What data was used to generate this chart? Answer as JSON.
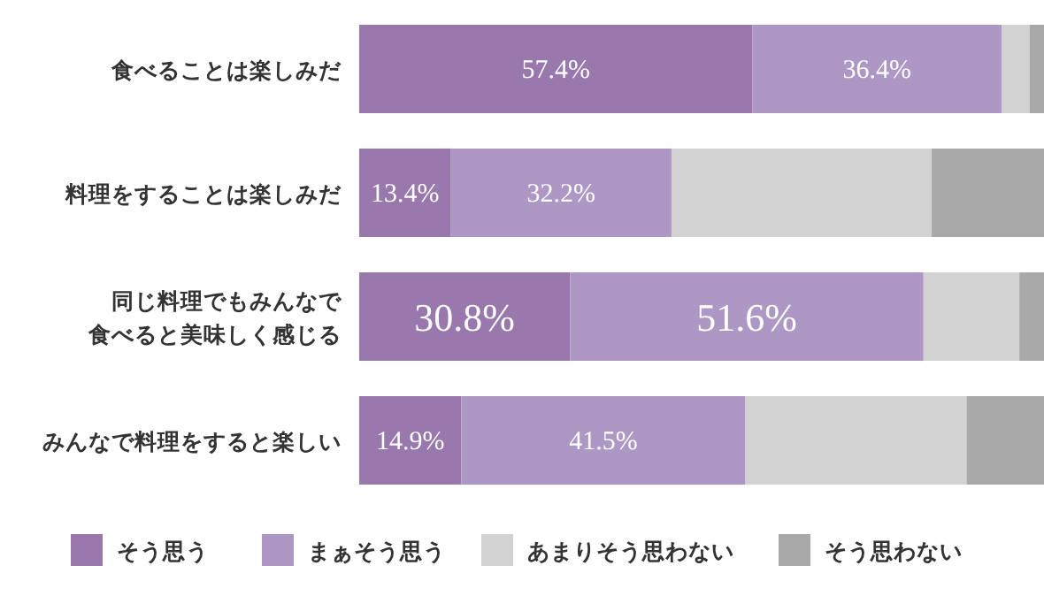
{
  "chart_data": {
    "type": "bar",
    "orientation": "horizontal",
    "stacked": true,
    "legend": "bottom",
    "categories": [
      "食べることは楽しみだ",
      "料理をすることは楽しみだ",
      "同じ料理でもみんなで食べると美味しく感じる",
      "みんなで料理をすると楽しい"
    ],
    "series": [
      {
        "name": "そう思う",
        "color": "#9878ad",
        "values": [
          57.4,
          13.4,
          30.8,
          14.9
        ],
        "value_labels": [
          "57.4%",
          "13.4%",
          "30.8%",
          "14.9%"
        ]
      },
      {
        "name": "まぁそう思う",
        "color": "#ad97c5",
        "values": [
          36.4,
          32.2,
          51.6,
          41.5
        ],
        "value_labels": [
          "36.4%",
          "32.2%",
          "51.6%",
          "41.5%"
        ]
      },
      {
        "name": "あまりそう思わない",
        "color": "#d2d2d2",
        "values": [
          4.1,
          38.0,
          14.0,
          32.3
        ]
      },
      {
        "name": "そう思わない",
        "color": "#a9a9a9",
        "values": [
          2.1,
          16.4,
          3.6,
          11.3
        ]
      }
    ]
  }
}
